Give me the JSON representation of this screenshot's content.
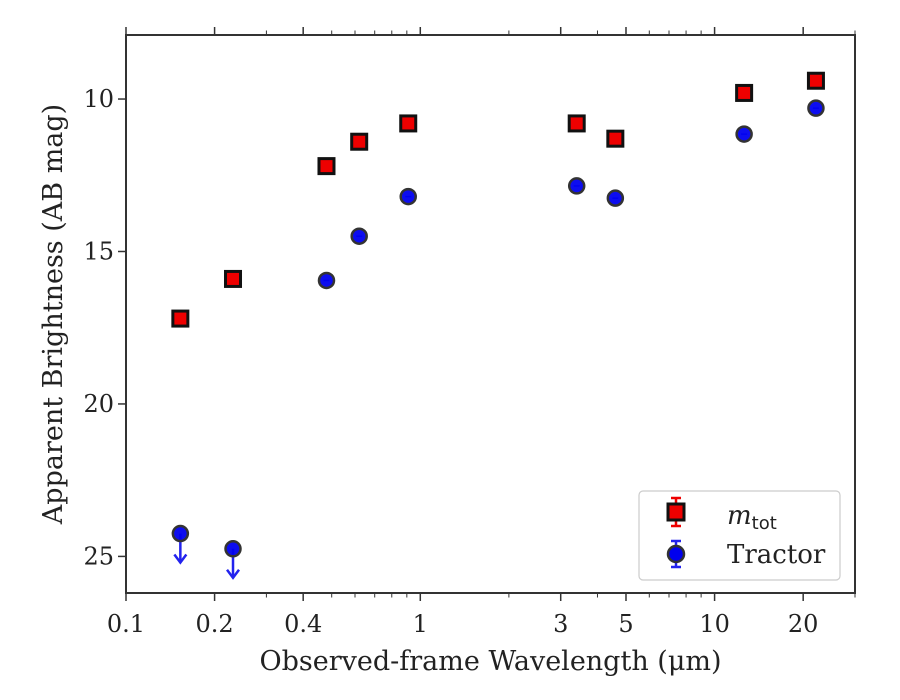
{
  "chart_data": {
    "type": "scatter",
    "xlabel": "Observed-frame Wavelength (μm)",
    "ylabel": "Apparent Brightness (AB mag)",
    "xscale": "log",
    "xlim": [
      0.1,
      30
    ],
    "ylim": [
      26.2,
      7.9
    ],
    "y_inverted": true,
    "x_ticks": [
      {
        "value": 0.1,
        "label": "0.1"
      },
      {
        "value": 0.2,
        "label": "0.2"
      },
      {
        "value": 0.4,
        "label": "0.4"
      },
      {
        "value": 1,
        "label": "1"
      },
      {
        "value": 3,
        "label": "3"
      },
      {
        "value": 5,
        "label": "5"
      },
      {
        "value": 10,
        "label": "10"
      },
      {
        "value": 20,
        "label": "20"
      }
    ],
    "y_ticks": [
      {
        "value": 10,
        "label": "10"
      },
      {
        "value": 15,
        "label": "15"
      },
      {
        "value": 20,
        "label": "20"
      },
      {
        "value": 25,
        "label": "25"
      }
    ],
    "grid": false,
    "legend_position": "lower-right",
    "series": [
      {
        "name": "m_tot",
        "legend_label": "m",
        "legend_subscript": "tot",
        "marker": "square",
        "face_color": "#ee0000",
        "edge_color": "#111111",
        "errorbar_color": "#ee0000",
        "x": [
          0.153,
          0.231,
          0.48,
          0.62,
          0.91,
          3.4,
          4.6,
          12.6,
          22.1
        ],
        "y": [
          17.2,
          15.9,
          12.2,
          11.4,
          10.8,
          10.8,
          11.3,
          9.8,
          9.4
        ]
      },
      {
        "name": "Tractor",
        "legend_label": "Tractor",
        "marker": "circle",
        "face_color": "#0000ee",
        "edge_color": "#333333",
        "errorbar_color": "#2222ee",
        "x": [
          0.153,
          0.231,
          0.48,
          0.62,
          0.91,
          3.4,
          4.6,
          12.6,
          22.1
        ],
        "y": [
          24.25,
          24.75,
          15.95,
          14.5,
          13.2,
          12.85,
          13.25,
          11.15,
          10.3
        ],
        "upper_limit": [
          true,
          true,
          false,
          false,
          false,
          false,
          false,
          false,
          false
        ]
      }
    ]
  }
}
